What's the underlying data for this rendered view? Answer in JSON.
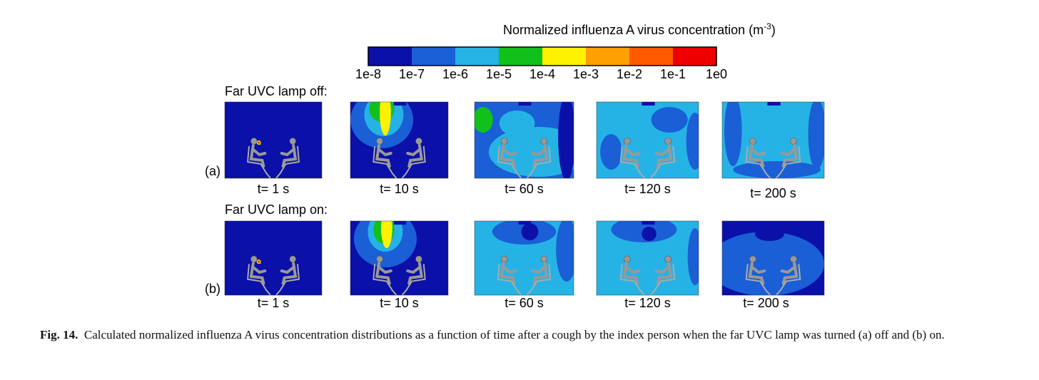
{
  "colorbar": {
    "title_parts": [
      "Normalized influenza A virus concentration (m",
      "-3",
      ")"
    ],
    "colors": [
      "#0a10a8",
      "#1a5fd6",
      "#25b3e6",
      "#12c01c",
      "#fff200",
      "#ffa000",
      "#ff5a00",
      "#ee0000"
    ],
    "labels": [
      "1e-8",
      "1e-7",
      "1e-6",
      "1e-5",
      "1e-4",
      "1e-3",
      "1e-2",
      "1e-1",
      "1e0"
    ]
  },
  "rows": [
    {
      "panel_label": "(a)",
      "heading": "Far UVC lamp off:",
      "times": [
        "t= 1 s",
        "t= 10 s",
        "t= 60 s",
        "t= 120 s",
        "t= 200 s"
      ]
    },
    {
      "panel_label": "(b)",
      "heading": "Far UVC lamp on:",
      "times": [
        "t= 1 s",
        "t= 10 s",
        "t= 60 s",
        "t= 120 s",
        "t= 200 s"
      ]
    }
  ],
  "caption": {
    "label": "Fig. 14.",
    "text": "Calculated normalized influenza A virus concentration distributions as a function of time after a cough by the index person when the far UVC lamp was turned (a) off and (b) on."
  }
}
